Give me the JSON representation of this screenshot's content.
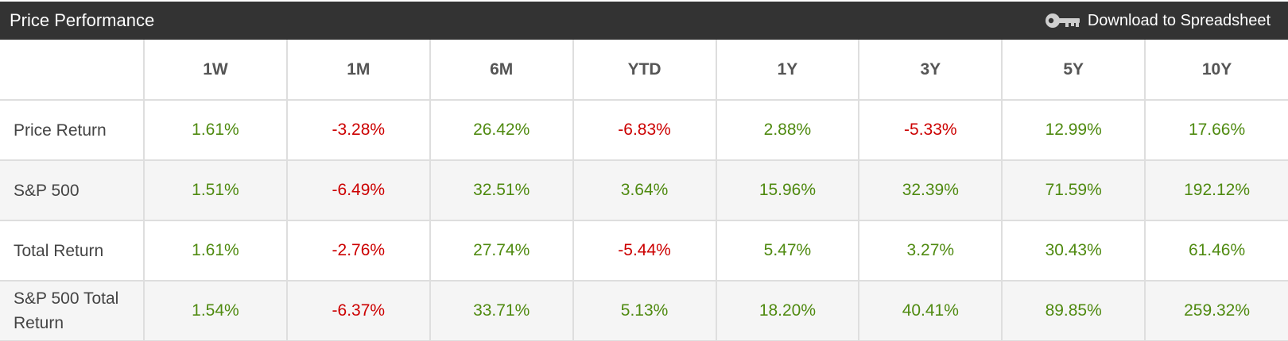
{
  "header": {
    "title": "Price Performance",
    "download_label": "Download to Spreadsheet"
  },
  "colors": {
    "header_bg": "#333333",
    "positive": "#4f8a10",
    "negative": "#cc0000",
    "alt_row_bg": "#f5f5f5"
  },
  "table": {
    "columns": [
      "",
      "1W",
      "1M",
      "6M",
      "YTD",
      "1Y",
      "3Y",
      "5Y",
      "10Y"
    ],
    "rows": [
      {
        "label": "Price Return",
        "values": [
          "1.61%",
          "-3.28%",
          "26.42%",
          "-6.83%",
          "2.88%",
          "-5.33%",
          "12.99%",
          "17.66%"
        ]
      },
      {
        "label": "S&P 500",
        "values": [
          "1.51%",
          "-6.49%",
          "32.51%",
          "3.64%",
          "15.96%",
          "32.39%",
          "71.59%",
          "192.12%"
        ]
      },
      {
        "label": "Total Return",
        "values": [
          "1.61%",
          "-2.76%",
          "27.74%",
          "-5.44%",
          "5.47%",
          "3.27%",
          "30.43%",
          "61.46%"
        ]
      },
      {
        "label": "S&P 500 Total Return",
        "values": [
          "1.54%",
          "-6.37%",
          "33.71%",
          "5.13%",
          "18.20%",
          "40.41%",
          "89.85%",
          "259.32%"
        ]
      }
    ]
  }
}
